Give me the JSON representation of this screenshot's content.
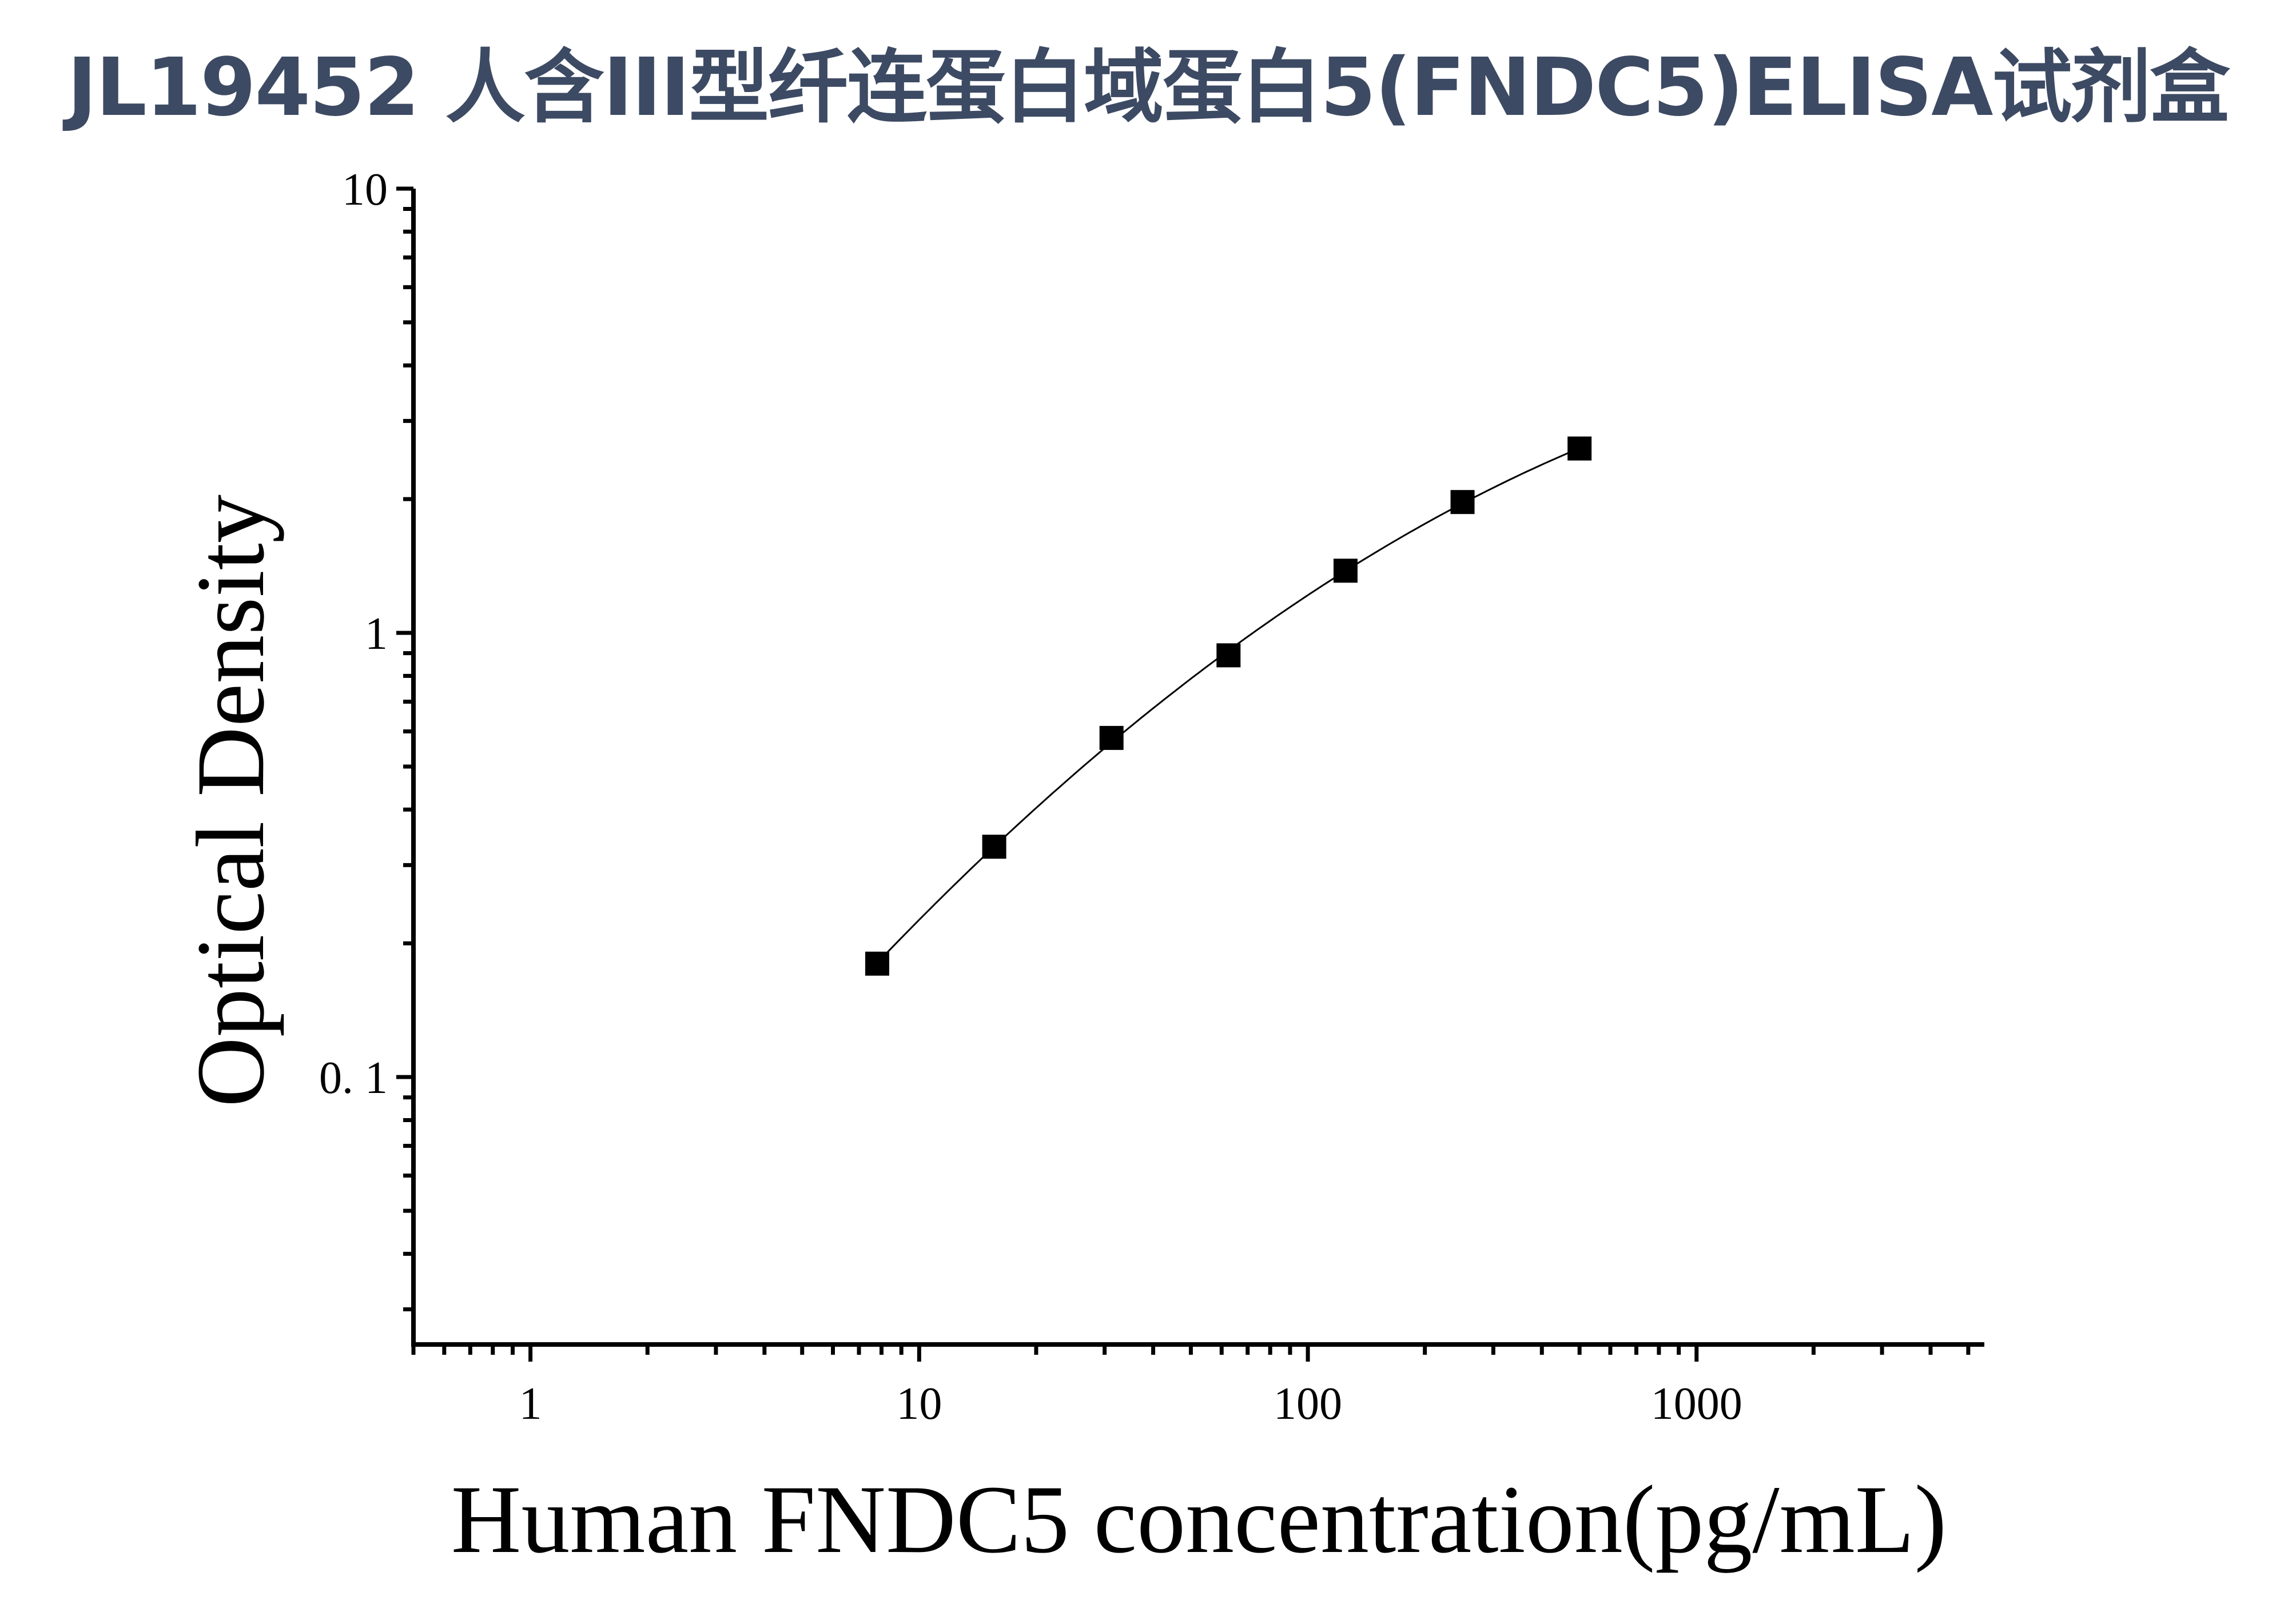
{
  "title": "JL19452 人含III型纤连蛋白域蛋白5(FNDC5)ELISA试剂盒",
  "chart_data": {
    "type": "scatter",
    "title": "JL19452 人含III型纤连蛋白域蛋白5(FNDC5)ELISA试剂盒",
    "xlabel": "Human FNDC5 concentration(pg/mL)",
    "ylabel": "Optical Density",
    "x_scale": "log",
    "y_scale": "log",
    "xlim": [
      0.5,
      5500
    ],
    "ylim": [
      0.025,
      10
    ],
    "x_ticks": [
      {
        "value": 1,
        "label": "1"
      },
      {
        "value": 10,
        "label": "10"
      },
      {
        "value": 100,
        "label": "100"
      },
      {
        "value": 1000,
        "label": "1000"
      }
    ],
    "y_ticks": [
      {
        "value": 0.1,
        "label": "0. 1"
      },
      {
        "value": 1,
        "label": "1"
      },
      {
        "value": 10,
        "label": "10"
      }
    ],
    "series": [
      {
        "marker": "square",
        "color": "#000000",
        "fit_line": true,
        "x": [
          7.8,
          15.6,
          31.25,
          62.5,
          125,
          250,
          500
        ],
        "y": [
          0.18,
          0.33,
          0.58,
          0.89,
          1.38,
          1.97,
          2.6
        ]
      }
    ],
    "grid": false,
    "legend": "none"
  }
}
